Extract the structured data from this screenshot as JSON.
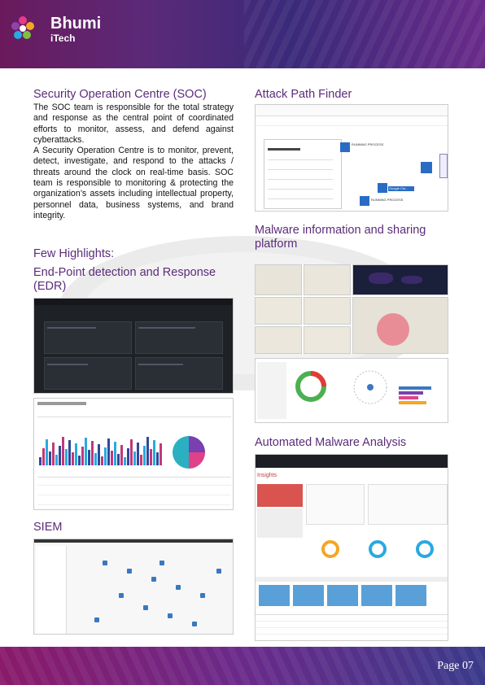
{
  "brand": {
    "name_line1": "Bhumi",
    "name_line2": "iTech"
  },
  "footer": {
    "page_label": "Page 07"
  },
  "soc": {
    "title": "Security Operation Centre (SOC)",
    "para1": "The SOC team is responsible for the  total strategy and response as the central point of coordinated efforts to monitor, assess, and defend against cyberattacks.",
    "para2": "A Security Operation Centre is to  monitor, prevent, detect, investigate, and respond to the attacks / threats around  the clock on real-time basis. SOC team is responsible to monitoring & protecting the organization’s assets including intellectual property, personnel data, business systems, and brand integrity."
  },
  "highlights": {
    "title": "Few Highlights:"
  },
  "edr": {
    "title": "End-Point detection and Response (EDR)"
  },
  "siem": {
    "title": "SIEM"
  },
  "attack_path": {
    "title": "Attack Path Finder",
    "node1": "RUNNING PROCESS",
    "node2": "Google Chr...",
    "node3": "RUNNING PROCESS"
  },
  "malware_info": {
    "title": "Malware information and sharing platform"
  },
  "auto_malware": {
    "title": "Automated Malware Analysis",
    "panel_title": "Insights"
  }
}
